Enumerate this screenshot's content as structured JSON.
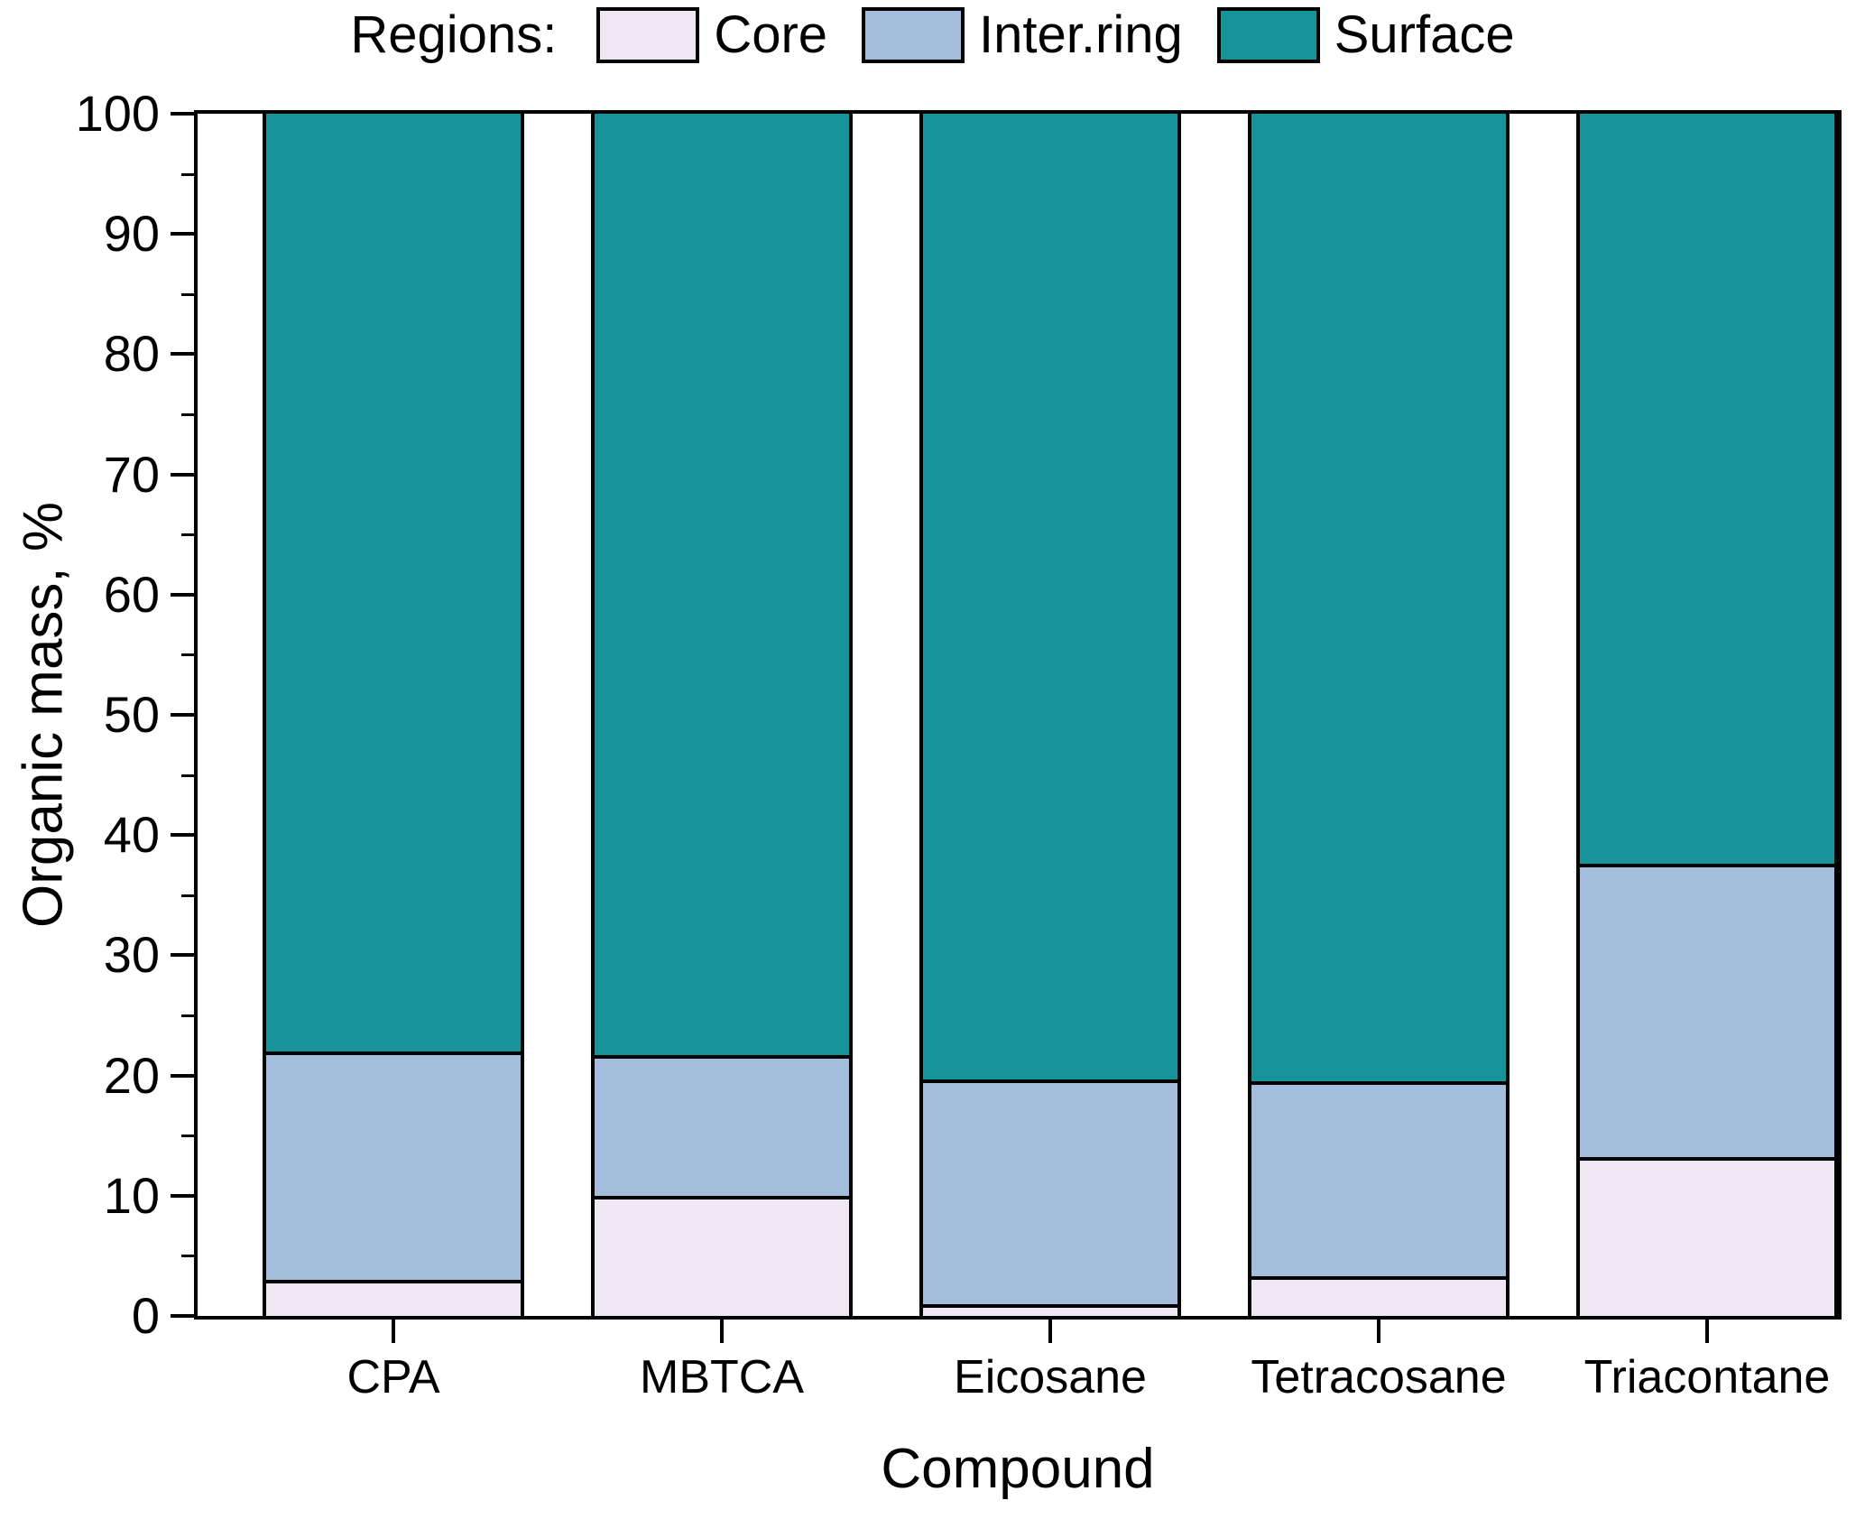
{
  "figure": {
    "background": "#ffffff"
  },
  "chart_data": {
    "type": "bar",
    "stacked": true,
    "legend_title": "Regions:",
    "legend_position": "top",
    "xlabel": "Compound",
    "ylabel": "Organic mass, %",
    "ylim": [
      0,
      100
    ],
    "yticks": [
      0,
      10,
      20,
      30,
      40,
      50,
      60,
      70,
      80,
      90,
      100
    ],
    "minor_tick_step": 5,
    "grid": false,
    "categories": [
      "CPA",
      "MBTCA",
      "Eicosane",
      "Tetracosane",
      "Triacontane"
    ],
    "series": [
      {
        "name": "Core",
        "color": "#f0e7f5",
        "values": [
          3,
          10,
          1,
          3.3,
          13.2
        ]
      },
      {
        "name": "Inter.ring",
        "color": "#a4bddc",
        "values": [
          19,
          11.7,
          18.7,
          16.2,
          24.4
        ]
      },
      {
        "name": "Surface",
        "color": "#17939a",
        "values": [
          78,
          78.3,
          80.3,
          80.5,
          62.4
        ]
      }
    ],
    "bar_outline_color": "#000000",
    "axis_color": "#000000"
  }
}
